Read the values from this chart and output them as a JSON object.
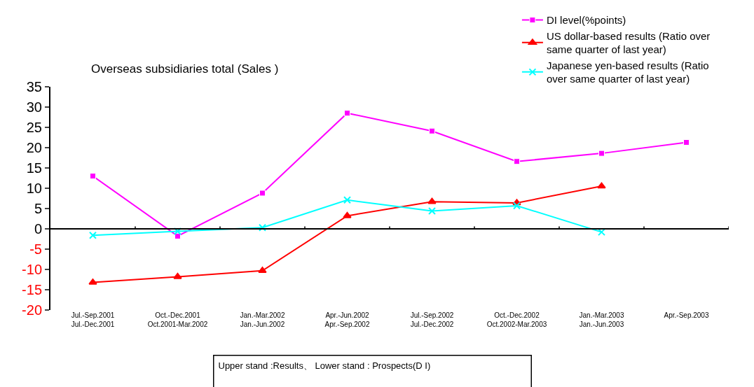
{
  "chart_data": {
    "type": "line",
    "title": "Overseas subsidiaries total (Sales )",
    "categories": [
      "Jul.-Sep.2001\nJul.-Dec.2001",
      "Oct.-Dec.2001\nOct.2001-Mar.2002",
      "Jan.-Mar.2002\nJan.-Jun.2002",
      "Apr.-Jun.2002\nApr.-Sep.2002",
      "Jul.-Sep.2002\nJul.-Dec.2002",
      "Oct.-Dec.2002\nOct.2002-Mar.2003",
      "Jan.-Mar.2003\nJan.-Jun.2003",
      "Apr.-Sep.2003"
    ],
    "series": [
      {
        "name": "DI level(%points)",
        "color": "#ff00ff",
        "marker": "square",
        "values": [
          13,
          -1.8,
          8.8,
          28.5,
          24.1,
          16.6,
          18.6,
          21.3
        ]
      },
      {
        "name": "US dollar-based results (Ratio over\nsame quarter of last year)",
        "color": "#ff0000",
        "marker": "triangle",
        "values": [
          -13.2,
          -11.8,
          -10.3,
          3.2,
          6.7,
          6.4,
          10.5,
          null
        ]
      },
      {
        "name": "Japanese yen-based results (Ratio\nover same quarter of last year)",
        "color": "#00ffff",
        "marker": "cross",
        "values": [
          -1.6,
          -0.6,
          0.3,
          7.1,
          4.4,
          5.7,
          -0.8,
          null
        ]
      }
    ],
    "ylim": [
      -20,
      35
    ],
    "yticks": [
      -20,
      -15,
      -10,
      -5,
      0,
      5,
      10,
      15,
      20,
      25,
      30,
      35
    ],
    "legend": "top right",
    "ref_lines": [
      {
        "axis": "y",
        "value": 0,
        "color": "#000000",
        "line_style": "solid"
      }
    ],
    "annotations": [
      "Upper stand :Results、 Lower stand : Prospects(D I)"
    ]
  }
}
